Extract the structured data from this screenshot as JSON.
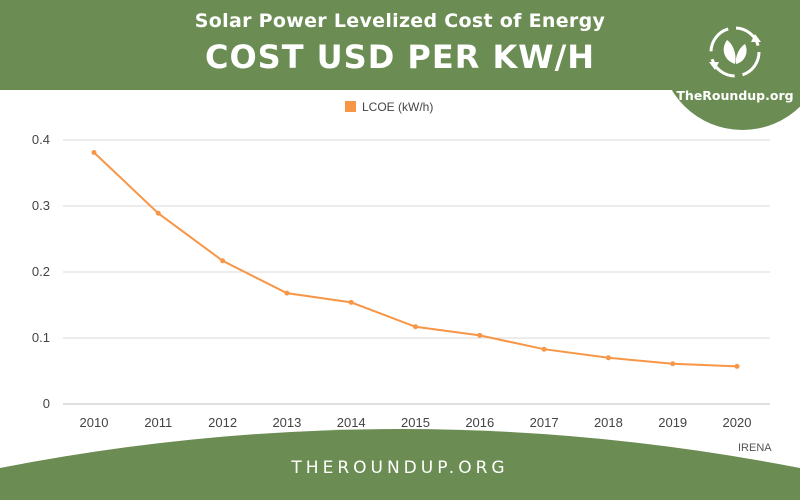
{
  "header": {
    "subtitle": "Solar Power Levelized Cost of Energy",
    "title": "COST USD PER KW/H"
  },
  "logo": {
    "text": "TheRoundup.org",
    "icon": "leaf-recycle-icon"
  },
  "footer": {
    "text": "THEROUNDUP.ORG"
  },
  "source": "IRENA",
  "colors": {
    "brand_green": "#6b8c52",
    "series": "#f79646",
    "grid": "#d9d9d9"
  },
  "chart_data": {
    "type": "line",
    "x": [
      "2010",
      "2011",
      "2012",
      "2013",
      "2014",
      "2015",
      "2016",
      "2017",
      "2018",
      "2019",
      "2020"
    ],
    "series": [
      {
        "name": "LCOE (kW/h)",
        "values": [
          0.381,
          0.289,
          0.217,
          0.168,
          0.154,
          0.117,
          0.104,
          0.083,
          0.07,
          0.061,
          0.057
        ]
      }
    ],
    "yticks": [
      "0",
      "0.1",
      "0.2",
      "0.3",
      "0.4"
    ],
    "ylim": [
      0,
      0.4
    ],
    "grid": true,
    "legend": "top-center"
  }
}
